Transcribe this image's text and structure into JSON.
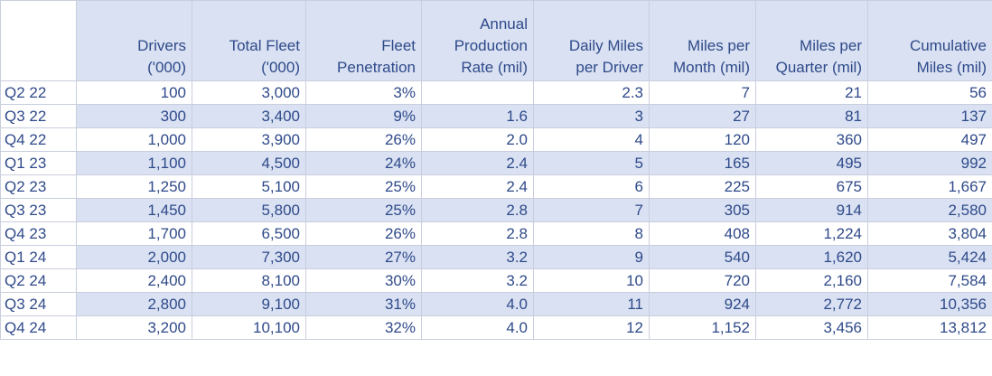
{
  "table": {
    "headers": [
      {
        "key": "quarter",
        "lines": [
          "",
          "",
          ""
        ]
      },
      {
        "key": "drivers",
        "lines": [
          "",
          "Drivers",
          "('000)"
        ]
      },
      {
        "key": "total_fleet",
        "lines": [
          "",
          "Total Fleet",
          "('000)"
        ]
      },
      {
        "key": "fleet_penetration",
        "lines": [
          "",
          "Fleet",
          "Penetration"
        ]
      },
      {
        "key": "annual_production_rate",
        "lines": [
          "Annual",
          "Production",
          "Rate (mil)"
        ]
      },
      {
        "key": "daily_miles",
        "lines": [
          "",
          "Daily Miles",
          "per Driver"
        ]
      },
      {
        "key": "miles_per_month",
        "lines": [
          "",
          "Miles per",
          "Month (mil)"
        ]
      },
      {
        "key": "miles_per_quarter",
        "lines": [
          "",
          "Miles per",
          "Quarter (mil)"
        ]
      },
      {
        "key": "cumulative_miles",
        "lines": [
          "",
          "Cumulative",
          "Miles (mil)"
        ]
      }
    ],
    "rows": [
      [
        "Q2 22",
        "100",
        "3,000",
        "3%",
        "",
        "2.3",
        "7",
        "21",
        "56"
      ],
      [
        "Q3 22",
        "300",
        "3,400",
        "9%",
        "1.6",
        "3",
        "27",
        "81",
        "137"
      ],
      [
        "Q4 22",
        "1,000",
        "3,900",
        "26%",
        "2.0",
        "4",
        "120",
        "360",
        "497"
      ],
      [
        "Q1 23",
        "1,100",
        "4,500",
        "24%",
        "2.4",
        "5",
        "165",
        "495",
        "992"
      ],
      [
        "Q2 23",
        "1,250",
        "5,100",
        "25%",
        "2.4",
        "6",
        "225",
        "675",
        "1,667"
      ],
      [
        "Q3 23",
        "1,450",
        "5,800",
        "25%",
        "2.8",
        "7",
        "305",
        "914",
        "2,580"
      ],
      [
        "Q4 23",
        "1,700",
        "6,500",
        "26%",
        "2.8",
        "8",
        "408",
        "1,224",
        "3,804"
      ],
      [
        "Q1 24",
        "2,000",
        "7,300",
        "27%",
        "3.2",
        "9",
        "540",
        "1,620",
        "5,424"
      ],
      [
        "Q2 24",
        "2,400",
        "8,100",
        "30%",
        "3.2",
        "10",
        "720",
        "2,160",
        "7,584"
      ],
      [
        "Q3 24",
        "2,800",
        "9,100",
        "31%",
        "4.0",
        "11",
        "924",
        "2,772",
        "10,356"
      ],
      [
        "Q4 24",
        "3,200",
        "10,100",
        "32%",
        "4.0",
        "12",
        "1,152",
        "3,456",
        "13,812"
      ]
    ],
    "colors": {
      "text": "#2f4a8a",
      "band": "#d9e1f2",
      "grid": "#c9cede",
      "background": "#ffffff"
    }
  }
}
